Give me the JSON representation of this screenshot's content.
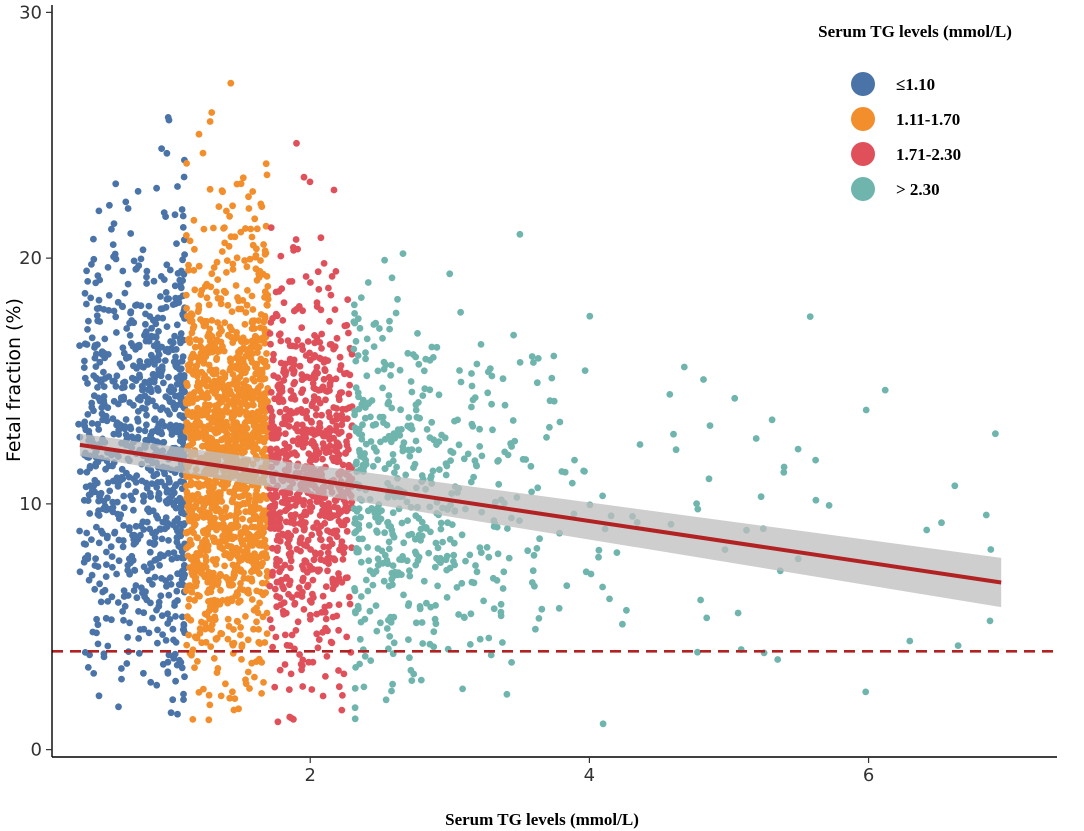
{
  "chart_data": {
    "type": "scatter",
    "title": "",
    "xlabel": "Serum TG levels (mmol/L)",
    "ylabel": "Fetal fraction (%)",
    "xlim": [
      0.15,
      7.35
    ],
    "ylim": [
      -0.3,
      30.3
    ],
    "x_ticks": [
      2,
      4,
      6
    ],
    "y_ticks": [
      0,
      10,
      20,
      30
    ],
    "grid": false,
    "legend": {
      "title": "Serum TG levels (mmol/L)",
      "position": "top-right",
      "entries": [
        {
          "label": "≤1.10",
          "color": "#4A73A8"
        },
        {
          "label": "1.11-1.70",
          "color": "#F28E2B"
        },
        {
          "label": "1.71-2.30",
          "color": "#E0505A"
        },
        {
          "label": "> 2.30",
          "color": "#6FB5AD"
        }
      ]
    },
    "groups": [
      {
        "name": "≤1.10",
        "x_range": [
          0.3,
          1.1
        ],
        "density": "very high",
        "color": "#4A73A8"
      },
      {
        "name": "1.11-1.70",
        "x_range": [
          1.11,
          1.7
        ],
        "density": "very high",
        "color": "#F28E2B"
      },
      {
        "name": "1.71-2.30",
        "x_range": [
          1.71,
          2.3
        ],
        "density": "high",
        "color": "#E0505A"
      },
      {
        "name": "> 2.30",
        "x_range": [
          2.31,
          6.95
        ],
        "density": "sparse",
        "color": "#6FB5AD"
      }
    ],
    "regression": {
      "x": [
        0.35,
        6.95
      ],
      "y": [
        12.4,
        6.8
      ],
      "ci_lower": [
        11.95,
        5.8
      ],
      "ci_upper": [
        12.85,
        7.8
      ],
      "line_color": "#B22222",
      "band_color": "#BEBEBE"
    },
    "threshold": {
      "y": 4,
      "style": "dashed",
      "color": "#B22222"
    }
  }
}
